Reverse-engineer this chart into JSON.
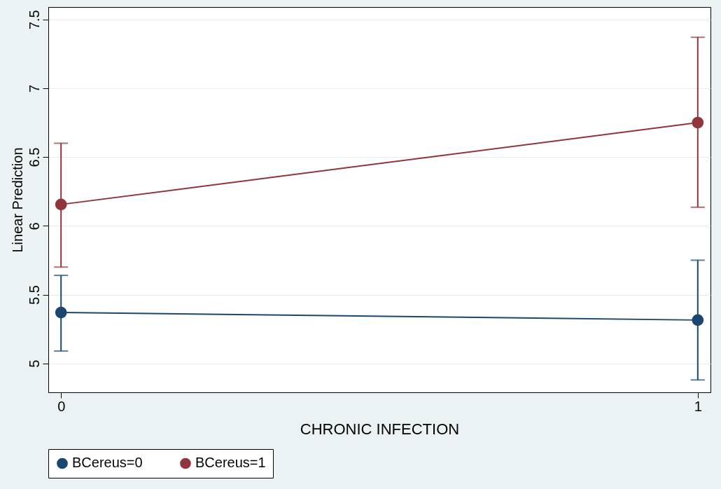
{
  "chart_data": {
    "type": "line",
    "xlabel": "CHRONIC INFECTION",
    "ylabel": "Linear Prediction",
    "x": [
      0,
      1
    ],
    "xlim": [
      -0.02,
      1.02
    ],
    "xticks": [
      0,
      1
    ],
    "ylim": [
      4.79,
      7.59
    ],
    "yticks": [
      5,
      5.5,
      6,
      6.5,
      7,
      7.5
    ],
    "series": [
      {
        "name": "BCereus=0",
        "color": "#1a476f",
        "values": [
          5.37,
          5.315
        ],
        "errors": [
          [
            5.09,
            5.64
          ],
          [
            4.88,
            5.75
          ]
        ]
      },
      {
        "name": "BCereus=1",
        "color": "#90353b",
        "values": [
          6.155,
          6.75
        ],
        "errors": [
          [
            5.7,
            6.6
          ],
          [
            6.135,
            7.37
          ]
        ]
      }
    ],
    "grid": "y",
    "legend": "bottom",
    "marker": "circle",
    "line_style": "solid"
  }
}
